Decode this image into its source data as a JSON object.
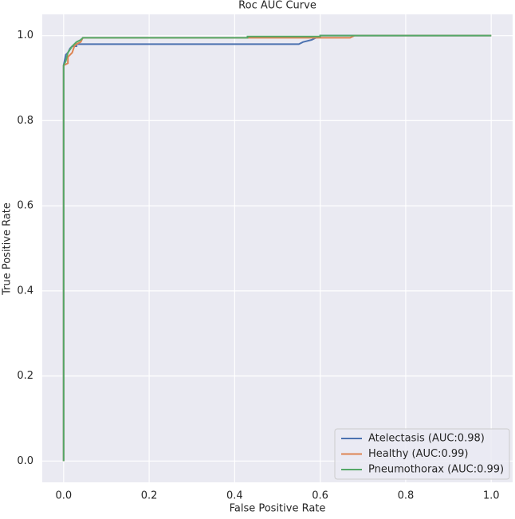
{
  "chart_data": {
    "type": "line",
    "title": "Roc AUC Curve",
    "xlabel": "False Positive Rate",
    "ylabel": "True Positive Rate",
    "xlim": [
      -0.05,
      1.05
    ],
    "ylim": [
      -0.05,
      1.05
    ],
    "xticks": [
      {
        "value": 0,
        "label": "0.0"
      },
      0.2,
      0.4,
      0.6,
      0.8,
      {
        "value": 1,
        "label": "1.0"
      }
    ],
    "yticks": [
      {
        "value": 0,
        "label": "0.0"
      },
      0.2,
      0.4,
      0.6,
      0.8,
      {
        "value": 1,
        "label": "1.0"
      }
    ],
    "grid": true,
    "legend": "lower right",
    "series": [
      {
        "name": "Atelectasis (AUC:0.98)",
        "color": "#4c72b0",
        "x": [
          0,
          0,
          0.005,
          0.01,
          0.015,
          0.02,
          0.03,
          0.03,
          0.55,
          0.56,
          0.58,
          0.59,
          0.6,
          0.6,
          1
        ],
        "values": [
          0,
          0.93,
          0.955,
          0.96,
          0.97,
          0.975,
          0.975,
          0.98,
          0.98,
          0.985,
          0.99,
          0.995,
          0.997,
          1,
          1
        ]
      },
      {
        "name": "Healthy (AUC:0.99)",
        "color": "#dd8452",
        "x": [
          0,
          0,
          0.01,
          0.01,
          0.02,
          0.025,
          0.03,
          0.04,
          0.045,
          0.67,
          0.68,
          1
        ],
        "values": [
          0,
          0.93,
          0.935,
          0.95,
          0.96,
          0.975,
          0.98,
          0.985,
          0.995,
          0.995,
          1,
          1
        ]
      },
      {
        "name": "Pneumothorax (AUC:0.99)",
        "color": "#55a868",
        "x": [
          0,
          0,
          0.005,
          0.01,
          0.02,
          0.03,
          0.04,
          0.045,
          0.43,
          0.43,
          0.6,
          0.6,
          1
        ],
        "values": [
          0,
          0.93,
          0.94,
          0.96,
          0.975,
          0.985,
          0.99,
          0.995,
          0.995,
          0.998,
          0.998,
          1,
          1
        ]
      }
    ]
  }
}
